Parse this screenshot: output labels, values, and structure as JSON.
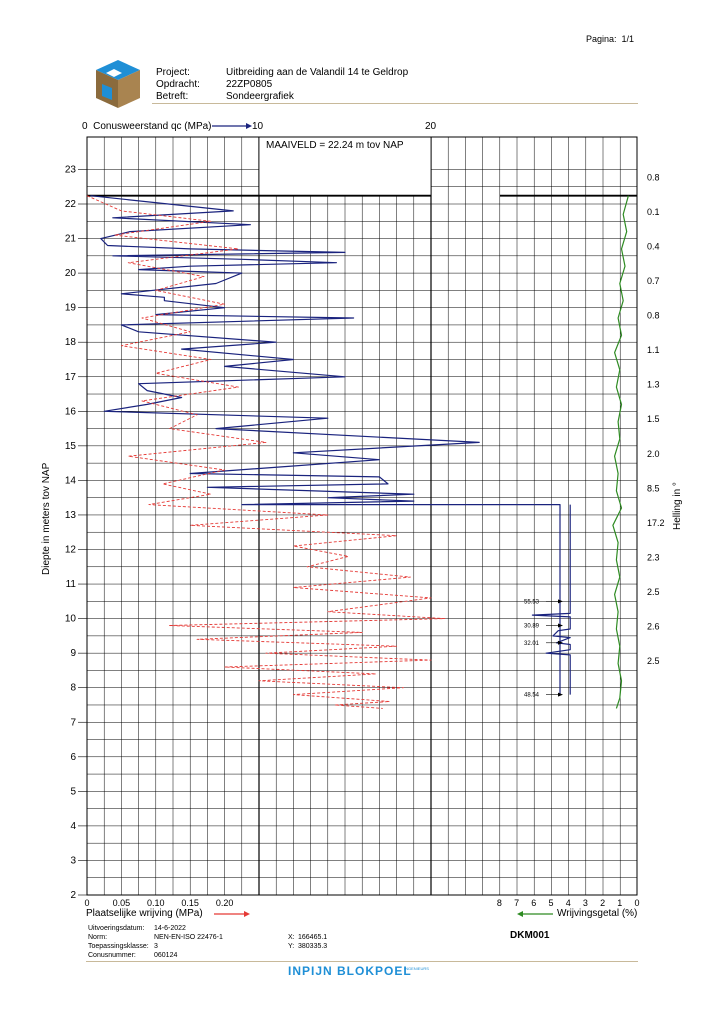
{
  "page": {
    "label": "Pagina:",
    "value": "1/1"
  },
  "header": {
    "rows": [
      {
        "label": "Project:",
        "value": "Uitbreiding aan de Valandil 14 te Geldrop"
      },
      {
        "label": "Opdracht:",
        "value": "22ZP0805"
      },
      {
        "label": "Betreft:",
        "value": "Sondeergrafiek"
      }
    ]
  },
  "chart_data": {
    "type": "line",
    "maaiveld_label": "MAAIVELD =   22.24  m tov NAP",
    "ylabel": "Diepte in meters tov NAP",
    "ylim": [
      2,
      23.3
    ],
    "y_ticks": [
      23,
      22,
      21,
      20,
      19,
      18,
      17,
      16,
      15,
      14,
      13,
      12,
      11,
      10,
      9,
      8,
      7,
      6,
      5,
      4,
      3,
      2
    ],
    "top_axis": {
      "label": "Conusweerstand qc (MPa)",
      "ticks": [
        "0",
        "10",
        "20"
      ],
      "xlim": [
        0,
        32
      ]
    },
    "bottom_left_axis": {
      "label": "Plaatselijke wrijving (MPa)",
      "ticks": [
        "0",
        "0.05",
        "0.10",
        "0.15",
        "0.20"
      ],
      "xlim": [
        0,
        0.8
      ]
    },
    "bottom_right_axis": {
      "label": "Wrijvingsgetal (%)",
      "ticks": [
        "8",
        "7",
        "6",
        "5",
        "4",
        "3",
        "2",
        "1",
        "0"
      ],
      "xlim": [
        8,
        0
      ]
    },
    "right_label": "Helling in °",
    "incline_values": [
      {
        "y": 22.8,
        "v": "0.8"
      },
      {
        "y": 21.8,
        "v": "0.1"
      },
      {
        "y": 20.8,
        "v": "0.4"
      },
      {
        "y": 19.8,
        "v": "0.7"
      },
      {
        "y": 18.8,
        "v": "0.8"
      },
      {
        "y": 17.8,
        "v": "1.1"
      },
      {
        "y": 16.8,
        "v": "1.3"
      },
      {
        "y": 15.8,
        "v": "1.5"
      },
      {
        "y": 14.8,
        "v": "2.0"
      },
      {
        "y": 13.8,
        "v": "8.5"
      },
      {
        "y": 12.8,
        "v": "17.2"
      },
      {
        "y": 11.8,
        "v": "2.3"
      },
      {
        "y": 10.8,
        "v": "2.5"
      },
      {
        "y": 9.8,
        "v": "2.6"
      },
      {
        "y": 8.8,
        "v": "2.5"
      }
    ],
    "annotations": [
      {
        "y": 10.5,
        "v": "55.53"
      },
      {
        "y": 9.8,
        "v": "30.89"
      },
      {
        "y": 9.3,
        "v": "32.01"
      },
      {
        "y": 7.8,
        "v": "48.54"
      }
    ],
    "series": [
      {
        "name": "Conusweerstand qc (MPa)",
        "color": "#1a237e",
        "x": [
          0.2,
          8.5,
          1.5,
          9.5,
          2.5,
          0.8,
          1.2,
          6,
          15,
          1.5,
          9,
          14.5,
          6,
          3,
          9,
          7.5,
          2,
          4.5,
          4.5,
          8,
          4,
          15.5,
          2,
          3,
          11,
          5.5,
          12,
          8,
          15,
          3,
          3.5,
          5.5,
          3.5,
          1,
          14,
          7.5,
          22.8,
          12,
          17,
          11.5,
          6,
          17,
          17.5,
          7,
          19,
          14,
          19,
          9,
          27.5,
          27.5
        ],
        "y": [
          22.24,
          21.8,
          21.6,
          21.4,
          21.2,
          21,
          20.8,
          20.7,
          20.6,
          20.5,
          20.4,
          20.3,
          20.2,
          20.1,
          20,
          19.7,
          19.4,
          19.3,
          19.2,
          19,
          18.8,
          18.7,
          18.5,
          18.3,
          18,
          17.8,
          17.5,
          17.3,
          17,
          16.8,
          16.6,
          16.4,
          16.2,
          16,
          15.8,
          15.5,
          15.1,
          14.8,
          14.6,
          14.4,
          14.2,
          14.1,
          13.9,
          13.8,
          13.6,
          13.5,
          13.4,
          13.3,
          13.3,
          7.8
        ]
      },
      {
        "name": "Plaatselijke wrijving (MPa)",
        "color": "#e53935",
        "x": [
          0,
          0.05,
          0.18,
          0.04,
          0.22,
          0.06,
          0.17,
          0.1,
          0.2,
          0.08,
          0.15,
          0.05,
          0.18,
          0.1,
          0.22,
          0.08,
          0.16,
          0.12,
          0.26,
          0.06,
          0.2,
          0.11,
          0.18,
          0.09,
          0.35,
          0.15,
          0.45,
          0.3,
          0.38,
          0.32,
          0.47,
          0.3,
          0.5,
          0.35,
          0.52,
          0.12,
          0.4,
          0.16,
          0.45,
          0.26,
          0.5,
          0.2,
          0.42,
          0.25,
          0.46,
          0.3,
          0.44,
          0.36,
          0.43
        ],
        "y": [
          22.24,
          21.8,
          21.5,
          21.1,
          20.7,
          20.3,
          19.9,
          19.5,
          19.1,
          18.7,
          18.3,
          17.9,
          17.5,
          17.1,
          16.7,
          16.3,
          15.9,
          15.5,
          15.1,
          14.7,
          14.3,
          13.9,
          13.6,
          13.3,
          13,
          12.7,
          12.4,
          12.1,
          11.8,
          11.5,
          11.2,
          10.9,
          10.6,
          10.2,
          10,
          9.8,
          9.6,
          9.4,
          9.2,
          9,
          8.8,
          8.6,
          8.4,
          8.2,
          8,
          7.8,
          7.6,
          7.5,
          7.4
        ]
      },
      {
        "name": "Wrijvingsgetal (%)",
        "color": "#2e8b22",
        "x": [
          0.5,
          0.8,
          0.6,
          0.9,
          0.7,
          1.0,
          0.8,
          1.1,
          0.9,
          1.3,
          1.0,
          1.2,
          0.9,
          1.1,
          1.0,
          1.3,
          1.1,
          1.2,
          0.9,
          1.4,
          1.1,
          1.2,
          1.0,
          1.3,
          1.1,
          1.2,
          1.0,
          1.1,
          0.9,
          1.0,
          1.2
        ],
        "y": [
          22.24,
          21.7,
          21.2,
          20.7,
          20.2,
          19.7,
          19.2,
          18.7,
          18.2,
          17.7,
          17.2,
          16.7,
          16.2,
          15.7,
          15.2,
          14.7,
          14.2,
          13.7,
          13.2,
          12.7,
          12.2,
          11.7,
          11.2,
          10.7,
          10.2,
          9.7,
          9.2,
          8.7,
          8.2,
          7.7,
          7.4
        ]
      },
      {
        "name": "Wrijvingsgetal profiel (%)",
        "color": "#1a237e",
        "x": [
          3.9,
          3.9,
          3.9,
          3.9,
          3.9,
          6.1,
          3.9,
          3.9,
          4.6,
          4.9,
          3.9,
          4.7,
          3.9,
          3.9,
          5.3,
          3.9,
          3.9
        ],
        "y": [
          13.3,
          12,
          11,
          10.3,
          10.15,
          10.1,
          10.05,
          9.7,
          9.65,
          9.5,
          9.45,
          9.3,
          9.25,
          9.1,
          9,
          8.95,
          7.8
        ]
      }
    ]
  },
  "footer": {
    "rows": [
      {
        "label": "Uitvoeringsdatum:",
        "value": "14-6-2022"
      },
      {
        "label": "Norm:",
        "value": "NEN-EN-ISO 22476-1"
      },
      {
        "label": "Toepassingsklasse:",
        "value": "3"
      },
      {
        "label": "Conusnummer:",
        "value": "060124"
      }
    ],
    "coords": [
      {
        "label": "X:",
        "value": "166465.1"
      },
      {
        "label": "Y:",
        "value": "380335.3"
      }
    ],
    "code": "DKM001",
    "brand": "INPIJN BLOKPOEL",
    "brand_sub": "INGENIEURS"
  },
  "colors": {
    "qc": "#1a237e",
    "friction": "#e53935",
    "ratio": "#2e8b22",
    "logo_blue": "#1f8fd6",
    "logo_brown": "#8b6b3d"
  }
}
